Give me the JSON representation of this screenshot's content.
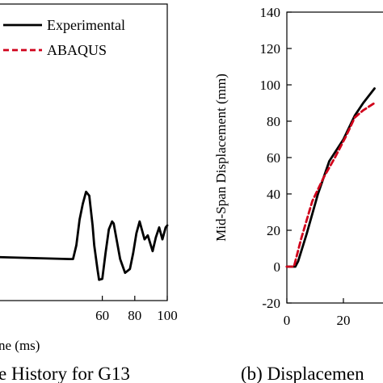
{
  "chart_data": [
    {
      "type": "line",
      "title": "",
      "caption": "e History for G13",
      "xlabel": "ne (ms)",
      "ylabel": "",
      "xlim": [
        -4,
        100
      ],
      "ylim": [
        -10,
        140
      ],
      "x_ticks": [
        "60",
        "80",
        "100"
      ],
      "x_tick_values": [
        60,
        80,
        100
      ],
      "grid": false,
      "legend_placement": "top",
      "legend": [
        "Experimental",
        "ABAQUS"
      ],
      "series": [
        {
          "name": "Experimental",
          "color": "#000000",
          "style": "solid",
          "x": [
            -4,
            40,
            42,
            44,
            46,
            48,
            50,
            52,
            54,
            55,
            57,
            58,
            60,
            62,
            64,
            66,
            67,
            69,
            71,
            74,
            77,
            79,
            81,
            83,
            86,
            88,
            91,
            93,
            95,
            97,
            99,
            100
          ],
          "y": [
            12,
            11,
            11,
            18,
            31,
            39,
            45,
            43,
            28,
            18,
            6,
            0.5,
            1,
            14,
            26,
            30,
            29,
            20,
            11,
            4,
            6,
            14,
            24,
            30,
            21,
            23,
            15,
            22,
            27,
            21,
            27,
            28
          ]
        },
        {
          "name": "ABAQUS",
          "color": "#d0021b",
          "style": "dashed",
          "x": [],
          "y": []
        }
      ]
    },
    {
      "type": "line",
      "title": "",
      "caption": "(b) Displacemen",
      "xlabel": "",
      "ylabel": "Mid-Span Displacement (mm)",
      "xlim": [
        0,
        40
      ],
      "ylim": [
        -20,
        140
      ],
      "y_ticks": [
        "140",
        "120",
        "100",
        "80",
        "60",
        "40",
        "20",
        "0",
        "-20"
      ],
      "y_tick_values": [
        140,
        120,
        100,
        80,
        60,
        40,
        20,
        0,
        -20
      ],
      "x_ticks": [
        "0",
        "20"
      ],
      "x_tick_values": [
        0,
        20
      ],
      "grid": false,
      "series": [
        {
          "name": "Experimental",
          "color": "#000000",
          "style": "solid",
          "x": [
            0,
            3,
            4,
            7,
            11,
            15,
            20,
            24,
            27,
            31
          ],
          "y": [
            0,
            0,
            3,
            18,
            40,
            58,
            70,
            83,
            90,
            98
          ]
        },
        {
          "name": "ABAQUS",
          "color": "#d0021b",
          "style": "dashed",
          "x": [
            0,
            2.5,
            5,
            9,
            13,
            17,
            21,
            24,
            27,
            31
          ],
          "y": [
            0,
            0,
            15,
            36,
            49,
            60,
            72,
            82,
            86,
            90
          ]
        }
      ]
    }
  ]
}
